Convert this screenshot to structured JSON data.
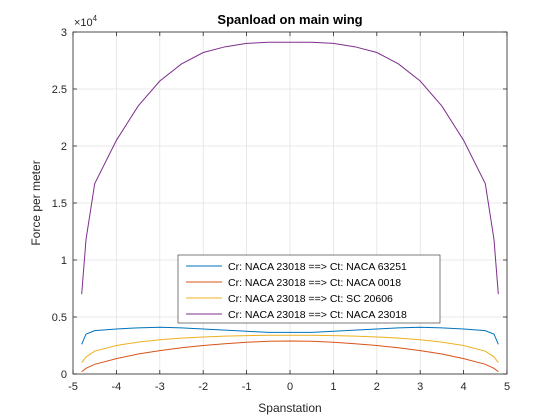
{
  "chart_data": {
    "type": "line",
    "title": "Spanload on main wing",
    "xlabel": "Spanstation",
    "ylabel": "Force per meter",
    "xlim": [
      -5,
      5
    ],
    "ylim": [
      0,
      30000
    ],
    "y_exponent_label": "×10",
    "y_exponent_power": "4",
    "xticks": [
      -5,
      -4,
      -3,
      -2,
      -1,
      0,
      1,
      2,
      3,
      4,
      5
    ],
    "xtick_labels": [
      "-5",
      "-4",
      "-3",
      "-2",
      "-1",
      "0",
      "1",
      "2",
      "3",
      "4",
      "5"
    ],
    "yticks": [
      0,
      5000,
      10000,
      15000,
      20000,
      25000,
      30000
    ],
    "ytick_labels": [
      "0",
      "0.5",
      "1",
      "1.5",
      "2",
      "2.5",
      "3"
    ],
    "grid": true,
    "legend_position": "lower-center",
    "x": [
      -4.8,
      -4.7,
      -4.5,
      -4.0,
      -3.5,
      -3.0,
      -2.5,
      -2.0,
      -1.5,
      -1.0,
      -0.5,
      0.0,
      0.5,
      1.0,
      1.5,
      2.0,
      2.5,
      3.0,
      3.5,
      4.0,
      4.5,
      4.7,
      4.8
    ],
    "series": [
      {
        "name": "Cr: NACA 23018 ==> Ct: NACA 63251",
        "color": "#0072BD",
        "values": [
          2600,
          3500,
          3800,
          3950,
          4050,
          4100,
          4050,
          3950,
          3850,
          3750,
          3650,
          3650,
          3650,
          3750,
          3850,
          3950,
          4050,
          4100,
          4050,
          3950,
          3800,
          3500,
          2600
        ]
      },
      {
        "name": "Cr: NACA 23018 ==> Ct: NACA 0018",
        "color": "#D95319",
        "values": [
          200,
          500,
          850,
          1350,
          1750,
          2050,
          2300,
          2500,
          2650,
          2780,
          2870,
          2900,
          2870,
          2780,
          2650,
          2500,
          2300,
          2050,
          1750,
          1350,
          850,
          500,
          200
        ]
      },
      {
        "name": "Cr: NACA 23018 ==> Ct: SC 20606",
        "color": "#EDB120",
        "values": [
          1000,
          1500,
          2000,
          2500,
          2800,
          3000,
          3150,
          3250,
          3320,
          3370,
          3400,
          3400,
          3400,
          3370,
          3320,
          3250,
          3150,
          3000,
          2800,
          2500,
          2000,
          1500,
          1000
        ]
      },
      {
        "name": "Cr: NACA 23018 ==> Ct: NACA 23018",
        "color": "#7E2F8E",
        "values": [
          7000,
          11800,
          16700,
          20500,
          23500,
          25700,
          27200,
          28200,
          28700,
          29000,
          29100,
          29100,
          29100,
          29000,
          28700,
          28200,
          27200,
          25700,
          23500,
          20500,
          16700,
          11800,
          7000
        ]
      }
    ]
  }
}
